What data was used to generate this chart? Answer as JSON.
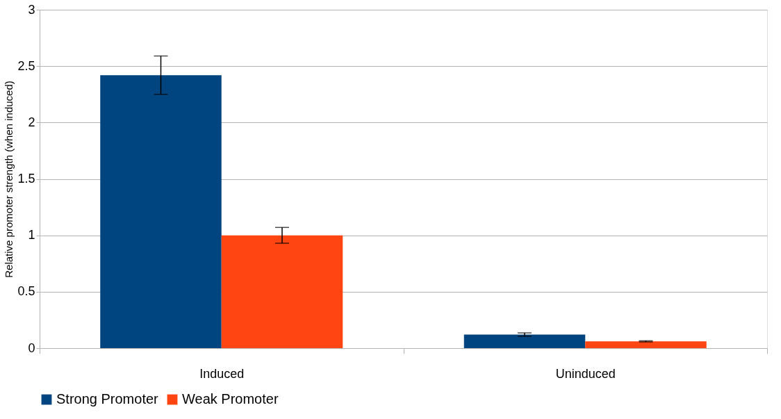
{
  "chart_data": {
    "type": "bar",
    "ylabel": "Relative promoter strength (when induced)",
    "categories": [
      "Induced",
      "Uninduced"
    ],
    "series": [
      {
        "name": "Strong Promoter",
        "color": "#00457f",
        "values": [
          2.42,
          0.12
        ],
        "errors": [
          0.17,
          0.015
        ]
      },
      {
        "name": "Weak Promoter",
        "color": "#ff4512",
        "values": [
          1.0,
          0.06
        ],
        "errors": [
          0.07,
          0.005
        ]
      }
    ],
    "ylim": [
      0,
      3
    ],
    "yticks": [
      0,
      0.5,
      1,
      1.5,
      2,
      2.5,
      3
    ],
    "grid": "y",
    "legend": "bottom"
  }
}
